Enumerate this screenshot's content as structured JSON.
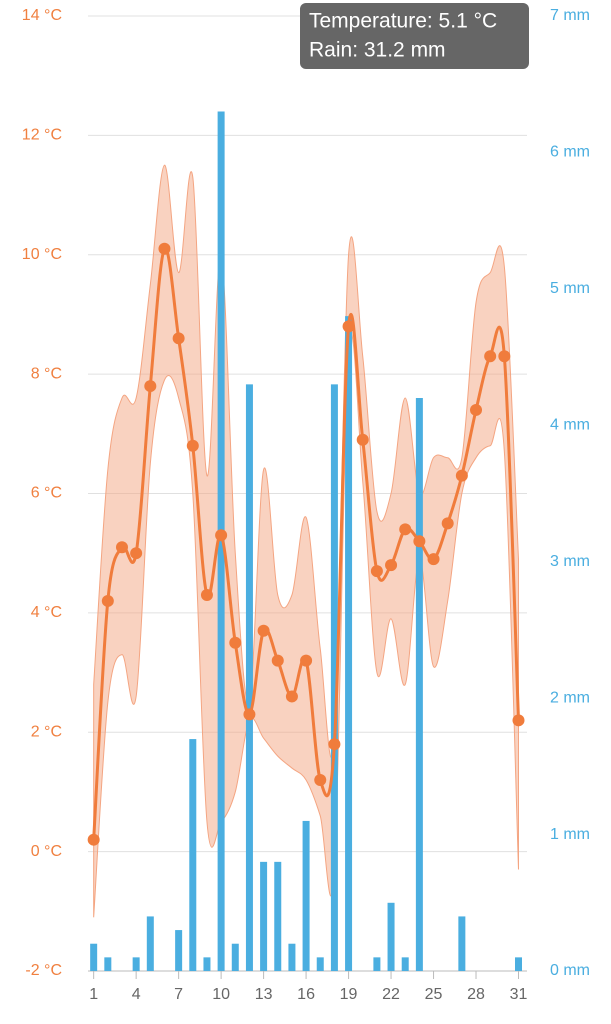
{
  "chart_data": {
    "type": "combo",
    "x": [
      1,
      2,
      3,
      4,
      5,
      6,
      7,
      8,
      9,
      10,
      11,
      12,
      13,
      14,
      15,
      16,
      17,
      18,
      19,
      20,
      21,
      22,
      23,
      24,
      25,
      26,
      27,
      28,
      29,
      30,
      31
    ],
    "xlim": [
      0.6,
      31.6
    ],
    "xticks": [
      1,
      4,
      7,
      10,
      13,
      16,
      19,
      22,
      25,
      28,
      31
    ],
    "ylim": [
      -2,
      14
    ],
    "yticks": [
      {
        "value": -2,
        "label": "-2 °C"
      },
      {
        "value": 0,
        "label": "0 °C"
      },
      {
        "value": 2,
        "label": "2 °C"
      },
      {
        "value": 4,
        "label": "4 °C"
      },
      {
        "value": 6,
        "label": "6 °C"
      },
      {
        "value": 8,
        "label": "8 °C"
      },
      {
        "value": 10,
        "label": "10 °C"
      },
      {
        "value": 12,
        "label": "12 °C"
      },
      {
        "value": 14,
        "label": "14 °C"
      }
    ],
    "y2lim": [
      0,
      7
    ],
    "y2ticks": [
      {
        "value": 0,
        "label": "0 mm"
      },
      {
        "value": 1,
        "label": "1 mm"
      },
      {
        "value": 2,
        "label": "2 mm"
      },
      {
        "value": 3,
        "label": "3 mm"
      },
      {
        "value": 4,
        "label": "4 mm"
      },
      {
        "value": 5,
        "label": "5 mm"
      },
      {
        "value": 6,
        "label": "6 mm"
      },
      {
        "value": 7,
        "label": "7 mm"
      }
    ],
    "grid": true,
    "series": [
      {
        "type": "range",
        "color": "#f4a582",
        "high": [
          2.8,
          6.4,
          7.6,
          7.6,
          9.5,
          11.5,
          9.7,
          11.3,
          6.3,
          10.0,
          5.0,
          2.5,
          6.4,
          4.3,
          4.3,
          5.6,
          3.4,
          1.9,
          10.0,
          8.3,
          5.7,
          6.0,
          7.6,
          6.0,
          6.6,
          6.6,
          6.6,
          9.2,
          9.7,
          9.8,
          4.9
        ],
        "low": [
          -1.1,
          2.5,
          3.3,
          2.6,
          6.5,
          7.9,
          7.6,
          6.0,
          0.5,
          0.5,
          1.0,
          2.2,
          1.9,
          1.6,
          1.4,
          1.2,
          0.6,
          -0.3,
          8.4,
          6.2,
          3.0,
          3.9,
          2.8,
          4.9,
          3.1,
          4.2,
          6.0,
          6.6,
          6.8,
          6.7,
          -0.3
        ]
      },
      {
        "type": "bar",
        "axis": "y2",
        "color": "#4aaee0",
        "values": [
          0.2,
          0.1,
          0,
          0.1,
          0.4,
          0,
          0.3,
          1.7,
          0.1,
          6.3,
          0.2,
          4.3,
          0.8,
          0.8,
          0.2,
          1.1,
          0.1,
          4.3,
          4.8,
          0,
          0.1,
          0.5,
          0.1,
          4.2,
          0,
          0,
          0.4,
          0,
          0,
          0,
          0.1
        ]
      },
      {
        "type": "line",
        "color": "#f07c3c",
        "values": [
          0.2,
          4.2,
          5.1,
          5.0,
          7.8,
          10.1,
          8.6,
          6.8,
          4.3,
          5.3,
          3.5,
          2.3,
          3.7,
          3.2,
          2.6,
          3.2,
          1.2,
          1.8,
          8.8,
          6.9,
          4.7,
          4.8,
          5.4,
          5.2,
          4.9,
          5.5,
          6.3,
          7.4,
          8.3,
          8.3,
          2.2
        ]
      }
    ],
    "annotations": [
      "Temperature: 5.1 °C",
      "Rain: 31.2 mm"
    ]
  }
}
